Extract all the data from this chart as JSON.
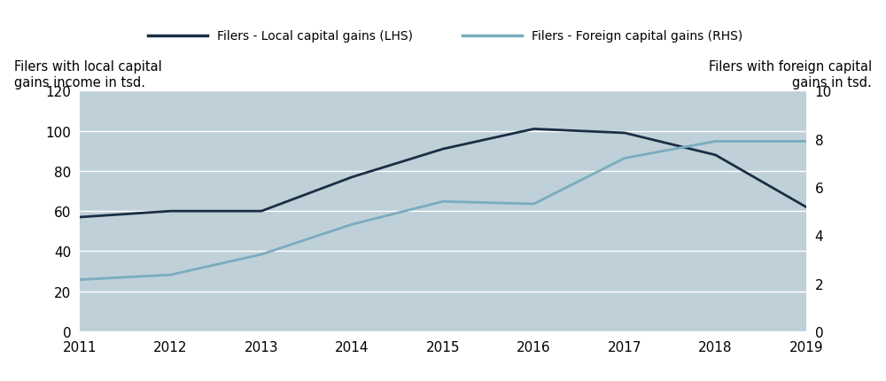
{
  "years": [
    2011,
    2012,
    2013,
    2014,
    2015,
    2016,
    2017,
    2018,
    2019
  ],
  "local_gains": [
    57,
    60,
    60,
    77,
    91,
    101,
    99,
    88,
    62
  ],
  "foreign_gains": [
    2.15,
    2.35,
    3.2,
    4.45,
    5.4,
    5.3,
    7.2,
    7.9,
    7.9
  ],
  "local_color": "#1a2e44",
  "foreign_color": "#7aacbe",
  "plot_bg_color": "#bfd0d9",
  "figure_bg_color": "#ffffff",
  "legend_bg": "#c5d5dc",
  "ylabel_left_line1": "Filers with local capital",
  "ylabel_left_line2": "gains income in tsd.",
  "ylabel_right_line1": "Filers with foreign capital",
  "ylabel_right_line2": "gains in tsd.",
  "ylim_left": [
    0,
    120
  ],
  "ylim_right": [
    0,
    10
  ],
  "yticks_left": [
    0,
    20,
    40,
    60,
    80,
    100,
    120
  ],
  "yticks_right": [
    0,
    2,
    4,
    6,
    8,
    10
  ],
  "legend_local": "Filers - Local capital gains (LHS)",
  "legend_foreign": "Filers - Foreign capital gains (RHS)",
  "line_width": 2.0,
  "grid_color": "#ffffff",
  "tick_label_fontsize": 11,
  "axis_label_fontsize": 10.5
}
